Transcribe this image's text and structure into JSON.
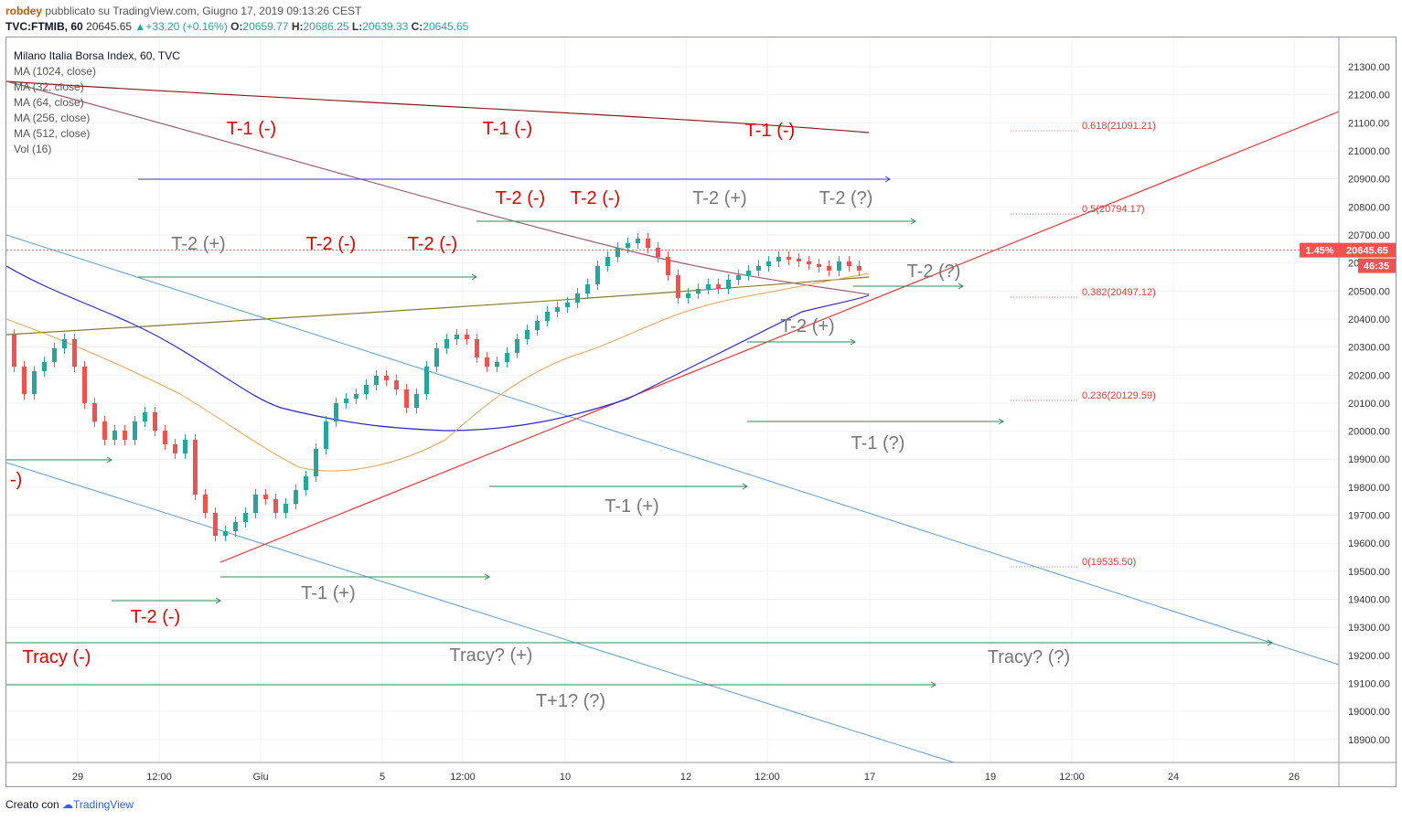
{
  "header": {
    "author": "robdey",
    "published": "pubblicato su TradingView.com, Giugno 17, 2019 09:13:26 CEST",
    "symbol": "TVC:FTMIB, 60",
    "last": "20645.65",
    "change": "+33.20 (+0.16%)",
    "o_label": "O:",
    "o": "20659.77",
    "h_label": "H:",
    "h": "20686.25",
    "l_label": "L:",
    "l": "20639.33",
    "c_label": "C:",
    "c": "20645.65"
  },
  "legend": [
    "Milano Italia Borsa Index, 60, TVC",
    "MA (1024, close)",
    "MA (32, close)",
    "MA (64, close)",
    "MA (256, close)",
    "MA (512, close)",
    "Vol (16)"
  ],
  "price_tag": {
    "pct": "1.45%",
    "price": "20645.65",
    "timer": "46:35",
    "color": "#ef5350"
  },
  "footer": {
    "created": "Creato con",
    "brand": "TradingView"
  },
  "chart_data": {
    "type": "candlestick",
    "y_ticks": [
      18900,
      19000,
      19100,
      19200,
      19300,
      19400,
      19500,
      19600,
      19700,
      19800,
      19900,
      20000,
      20100,
      20200,
      20300,
      20400,
      20500,
      20600,
      20700,
      20800,
      20900,
      21000,
      21100,
      21200,
      21300
    ],
    "ylim": [
      18820,
      21440
    ],
    "x_ticks": [
      "29",
      "12:00",
      "Giu",
      "5",
      "12:00",
      "10",
      "12",
      "12:00",
      "17",
      "19",
      "12:00",
      "24",
      "26"
    ],
    "last_price": 20645.65,
    "fib_levels": [
      {
        "label": "0.618(21091.21)",
        "value": 21091.21
      },
      {
        "label": "0.5(20794.17)",
        "value": 20794.17
      },
      {
        "label": "0.382(20497.12)",
        "value": 20497.12
      },
      {
        "label": "0.236(20129.59)",
        "value": 20129.59
      },
      {
        "label": "0(19535.50)",
        "value": 19535.5
      }
    ],
    "annotations": [
      {
        "text": "T-1 (-)",
        "color": "#e00000"
      },
      {
        "text": "T-1 (-)",
        "color": "#e00000"
      },
      {
        "text": "T-1 (-)",
        "color": "#e00000"
      },
      {
        "text": "T-2 (-)",
        "color": "#e00000"
      },
      {
        "text": "T-2 (-)",
        "color": "#e00000"
      },
      {
        "text": "T-2 (+)",
        "color": "#777"
      },
      {
        "text": "T-2 (?)",
        "color": "#777"
      },
      {
        "text": "T-2 (+)",
        "color": "#777"
      },
      {
        "text": "T-2 (-)",
        "color": "#e00000"
      },
      {
        "text": "T-2 (-)",
        "color": "#e00000"
      },
      {
        "text": "T-2 (?)",
        "color": "#777"
      },
      {
        "text": "T-2 (+)",
        "color": "#777"
      },
      {
        "text": "T-1 (?)",
        "color": "#777"
      },
      {
        "text": "-)",
        "color": "#e00000"
      },
      {
        "text": "T-1 (+)",
        "color": "#777"
      },
      {
        "text": "T-1 (+)",
        "color": "#777"
      },
      {
        "text": "T-2 (-)",
        "color": "#e00000"
      },
      {
        "text": "Tracy (-)",
        "color": "#e00000"
      },
      {
        "text": "Tracy? (+)",
        "color": "#777"
      },
      {
        "text": "Tracy? (?)",
        "color": "#777"
      },
      {
        "text": "T+1? (?)",
        "color": "#777"
      }
    ],
    "colors": {
      "up": "#26a69a",
      "down": "#ef5350",
      "ma_long": "#8b1a1a",
      "ma_mid": "#9c5b6e",
      "ma_orange": "#f0a050",
      "ma_blue": "#2a2ad0",
      "ma_olive": "#8a7a2a",
      "trend_red": "#e53935",
      "channel_blue": "#5b9bd5",
      "range_green": "#2e8b57",
      "range_blue": "#3a3ad0"
    }
  }
}
